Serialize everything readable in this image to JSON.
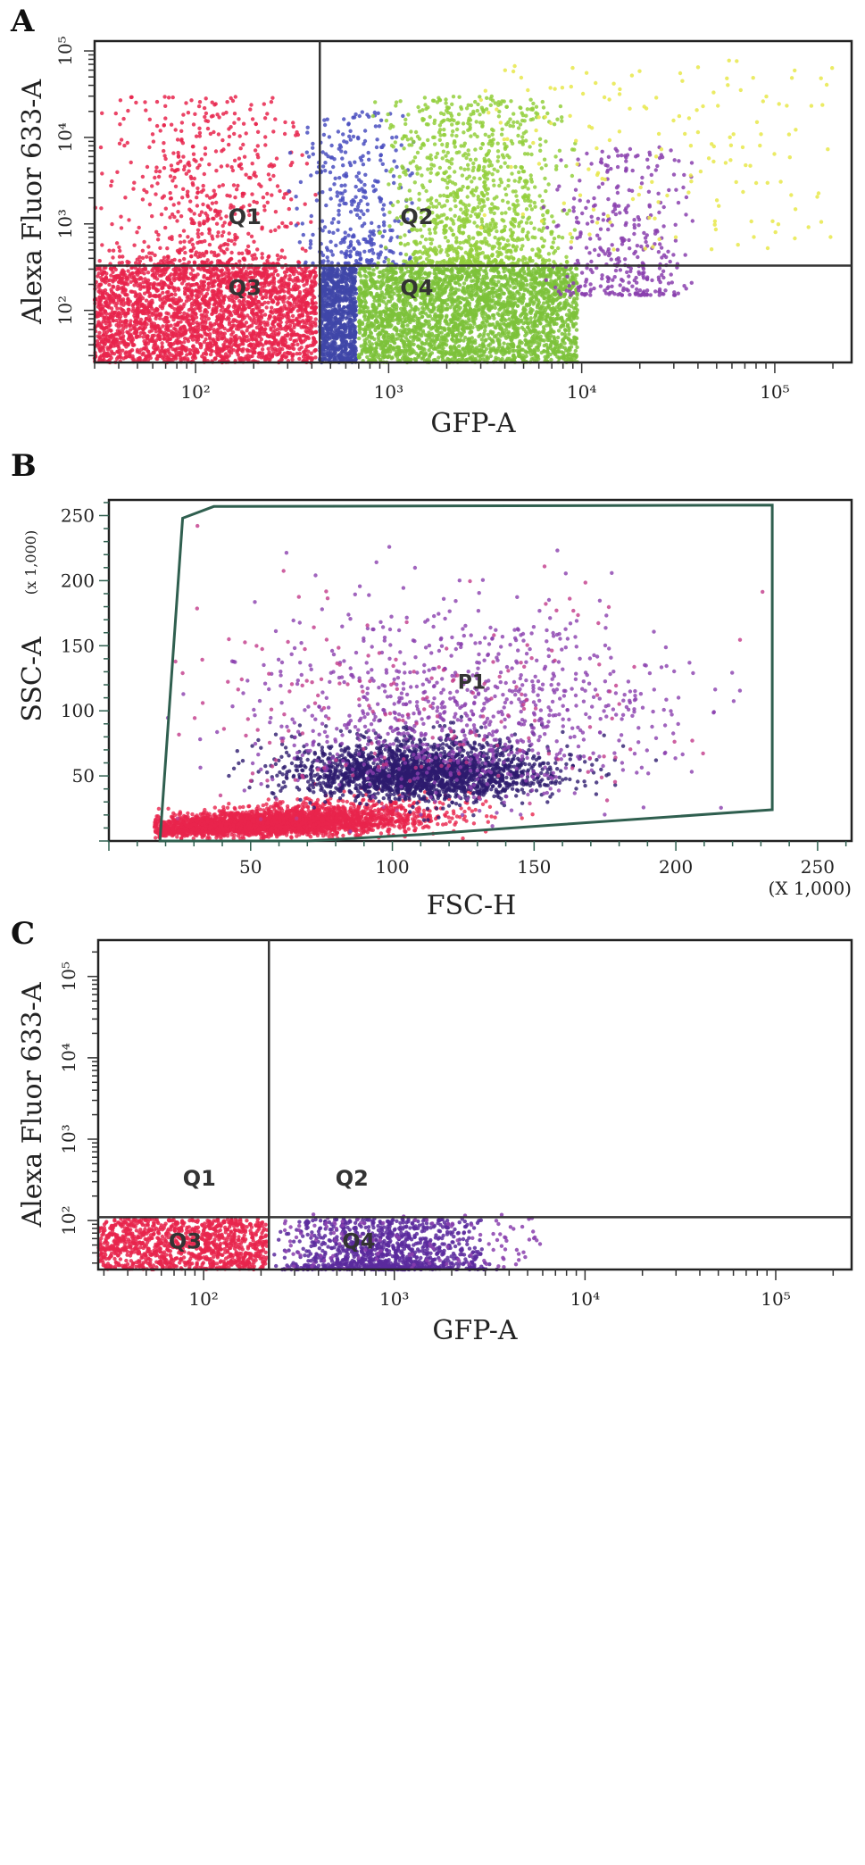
{
  "panels": {
    "A": {
      "letter": "A"
    },
    "B": {
      "letter": "B"
    },
    "C": {
      "letter": "C"
    }
  },
  "chart_data": [
    {
      "id": "A",
      "type": "scatter",
      "xlabel": "GFP-A",
      "ylabel": "Alexa Fluor 633-A",
      "x_scale": "log",
      "y_scale": "log",
      "xlim": [
        30,
        250000
      ],
      "ylim": [
        25,
        130000
      ],
      "x_ticks": [
        {
          "value": 100,
          "label": "10²"
        },
        {
          "value": 1000,
          "label": "10³"
        },
        {
          "value": 10000,
          "label": "10⁴"
        },
        {
          "value": 100000,
          "label": "10⁵"
        }
      ],
      "y_ticks": [
        {
          "value": 100,
          "label": "10²"
        },
        {
          "value": 1000,
          "label": "10³"
        },
        {
          "value": 10000,
          "label": "10⁴"
        },
        {
          "value": 100000,
          "label": "10⁵"
        }
      ],
      "gate_lines": {
        "x": 440,
        "y": 330
      },
      "quadrant_labels": [
        {
          "text": "Q1",
          "x": 180,
          "y": 1000
        },
        {
          "text": "Q2",
          "x": 1400,
          "y": 1000
        },
        {
          "text": "Q3",
          "x": 180,
          "y": 150
        },
        {
          "text": "Q4",
          "x": 1400,
          "y": 150
        }
      ],
      "populations": [
        {
          "color": "#e8244c",
          "n": 2600,
          "region": [
            30,
            420,
            25,
            320
          ],
          "dist": "uniform"
        },
        {
          "color": "#e8244c",
          "n": 600,
          "region": [
            30,
            430,
            330,
            30000
          ],
          "dist": "logtri"
        },
        {
          "color": "#3f46a8",
          "n": 900,
          "region": [
            440,
            680,
            25,
            320
          ],
          "dist": "uniform"
        },
        {
          "color": "#4a4fc0",
          "n": 350,
          "region": [
            300,
            1500,
            330,
            20000
          ],
          "dist": "logtri"
        },
        {
          "color": "#7cc23a",
          "n": 2800,
          "region": [
            700,
            9500,
            25,
            320
          ],
          "dist": "uniform"
        },
        {
          "color": "#93cf3c",
          "n": 1100,
          "region": [
            800,
            10000,
            330,
            30000
          ],
          "dist": "logtri"
        },
        {
          "color": "#8a3fae",
          "n": 350,
          "region": [
            6000,
            40000,
            150,
            8000
          ],
          "dist": "logtri"
        },
        {
          "color": "#e8e84a",
          "n": 160,
          "region": [
            3000,
            200000,
            500,
            80000
          ],
          "dist": "uniform"
        }
      ]
    },
    {
      "id": "B",
      "type": "scatter",
      "xlabel": "FSC-H",
      "ylabel": "SSC-A",
      "x_scale_note": "(X 1,000)",
      "y_scale_note": "(x 1,000)",
      "x_scale": "linear",
      "y_scale": "linear",
      "xlim": [
        0,
        262
      ],
      "ylim": [
        0,
        262
      ],
      "x_ticks": [
        50,
        100,
        150,
        200,
        250
      ],
      "y_ticks": [
        50,
        100,
        150,
        200,
        250
      ],
      "gate_label": {
        "text": "P1",
        "x": 128,
        "y": 117
      },
      "gate_polygon": [
        [
          18,
          0
        ],
        [
          26,
          248
        ],
        [
          37,
          257
        ],
        [
          234,
          258
        ],
        [
          234,
          24
        ],
        [
          155,
          12
        ],
        [
          110,
          5
        ],
        [
          70,
          0
        ]
      ],
      "populations": [
        {
          "color": "#e8244c",
          "n": 3200,
          "center": [
            55,
            18
          ],
          "spread": [
            28,
            10
          ],
          "clip": true
        },
        {
          "color": "#2d1a6e",
          "n": 2200,
          "center": [
            110,
            48
          ],
          "spread": [
            22,
            14
          ]
        },
        {
          "color": "#8a3fae",
          "n": 900,
          "center": [
            125,
            85
          ],
          "spread": [
            35,
            45
          ]
        },
        {
          "color": "#c23a8a",
          "n": 200,
          "center": [
            110,
            80
          ],
          "spread": [
            50,
            55
          ]
        }
      ]
    },
    {
      "id": "C",
      "type": "scatter",
      "xlabel": "GFP-A",
      "ylabel": "Alexa Fluor 633-A",
      "x_scale": "log",
      "y_scale": "log",
      "xlim": [
        28,
        250000
      ],
      "ylim": [
        25,
        280000
      ],
      "x_ticks": [
        {
          "value": 100,
          "label": "10²"
        },
        {
          "value": 1000,
          "label": "10³"
        },
        {
          "value": 10000,
          "label": "10⁴"
        },
        {
          "value": 100000,
          "label": "10⁵"
        }
      ],
      "y_ticks": [
        {
          "value": 100,
          "label": "10²"
        },
        {
          "value": 1000,
          "label": "10³"
        },
        {
          "value": 10000,
          "label": "10⁴"
        },
        {
          "value": 100000,
          "label": "10⁵"
        }
      ],
      "gate_lines": {
        "x": 220,
        "y": 110
      },
      "quadrant_labels": [
        {
          "text": "Q1",
          "x": 95,
          "y": 270
        },
        {
          "text": "Q2",
          "x": 600,
          "y": 270
        },
        {
          "text": "Q3",
          "x": 80,
          "y": 45
        },
        {
          "text": "Q4",
          "x": 650,
          "y": 45
        }
      ],
      "populations": [
        {
          "color": "#e8244c",
          "n": 1100,
          "region": [
            28,
            215,
            25,
            105
          ],
          "dist": "uniform"
        },
        {
          "color": "#5a2a9e",
          "n": 1100,
          "region": [
            230,
            3500,
            25,
            105
          ],
          "dist": "logtri"
        },
        {
          "color": "#8a3fae",
          "n": 120,
          "region": [
            250,
            6000,
            25,
            120
          ],
          "dist": "uniform"
        }
      ]
    }
  ]
}
